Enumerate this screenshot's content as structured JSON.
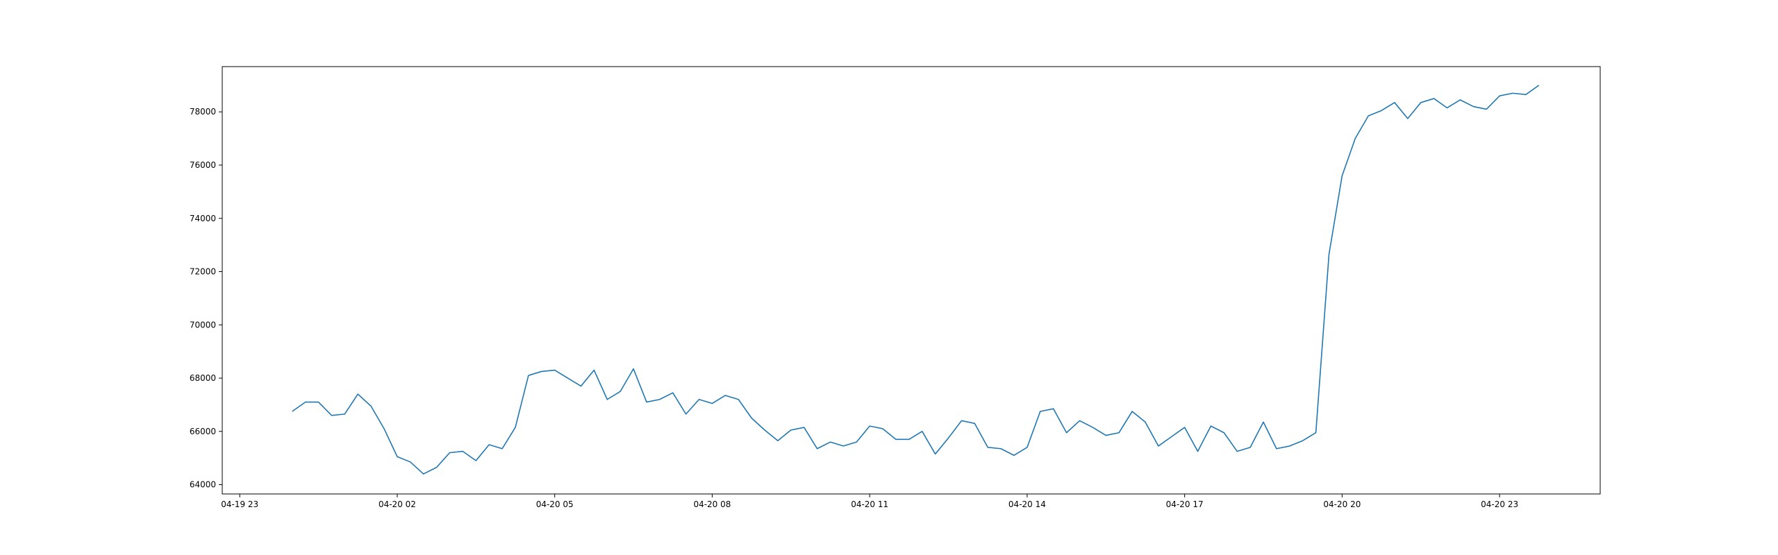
{
  "chart_data": {
    "type": "line",
    "title": "",
    "xlabel": "",
    "ylabel": "",
    "x_start": "04-20 00:00",
    "x_step_minutes": 15,
    "xlim": [
      "04-19 22:40",
      "04-21 00:55"
    ],
    "ylim": [
      63650,
      79700
    ],
    "x_ticks": [
      {
        "value": "04-19 23:00",
        "label": "04-19 23"
      },
      {
        "value": "04-20 02:00",
        "label": "04-20 02"
      },
      {
        "value": "04-20 05:00",
        "label": "04-20 05"
      },
      {
        "value": "04-20 08:00",
        "label": "04-20 08"
      },
      {
        "value": "04-20 11:00",
        "label": "04-20 11"
      },
      {
        "value": "04-20 14:00",
        "label": "04-20 14"
      },
      {
        "value": "04-20 17:00",
        "label": "04-20 17"
      },
      {
        "value": "04-20 20:00",
        "label": "04-20 20"
      },
      {
        "value": "04-20 23:00",
        "label": "04-20 23"
      }
    ],
    "y_ticks": [
      {
        "value": 64000,
        "label": "64000"
      },
      {
        "value": 66000,
        "label": "66000"
      },
      {
        "value": 68000,
        "label": "68000"
      },
      {
        "value": 70000,
        "label": "70000"
      },
      {
        "value": 72000,
        "label": "72000"
      },
      {
        "value": 74000,
        "label": "74000"
      },
      {
        "value": 76000,
        "label": "76000"
      },
      {
        "value": 78000,
        "label": "78000"
      }
    ],
    "grid": false,
    "legend": false,
    "series": [
      {
        "color": "#1f77b4",
        "values": [
          66750,
          67100,
          67100,
          66600,
          66650,
          67400,
          66950,
          66100,
          65050,
          64850,
          64400,
          64650,
          65200,
          65250,
          64900,
          65500,
          65350,
          66150,
          68100,
          68250,
          68300,
          68000,
          67700,
          68300,
          67200,
          67500,
          68350,
          67100,
          67200,
          67450,
          66650,
          67200,
          67050,
          67350,
          67200,
          66500,
          66050,
          65650,
          66050,
          66150,
          65350,
          65600,
          65450,
          65600,
          66200,
          66100,
          65700,
          65700,
          66000,
          65150,
          65750,
          66400,
          66300,
          65400,
          65350,
          65100,
          65400,
          66750,
          66850,
          65950,
          66400,
          66150,
          65850,
          65950,
          66750,
          66350,
          65450,
          65800,
          66150,
          65250,
          66200,
          65950,
          65250,
          65400,
          66350,
          65350,
          65450,
          65650,
          65950,
          72650,
          75600,
          77000,
          77850,
          78050,
          78350,
          77750,
          78350,
          78500,
          78150,
          78450,
          78200,
          78100,
          78600,
          78700,
          78650,
          79000
        ]
      }
    ]
  }
}
